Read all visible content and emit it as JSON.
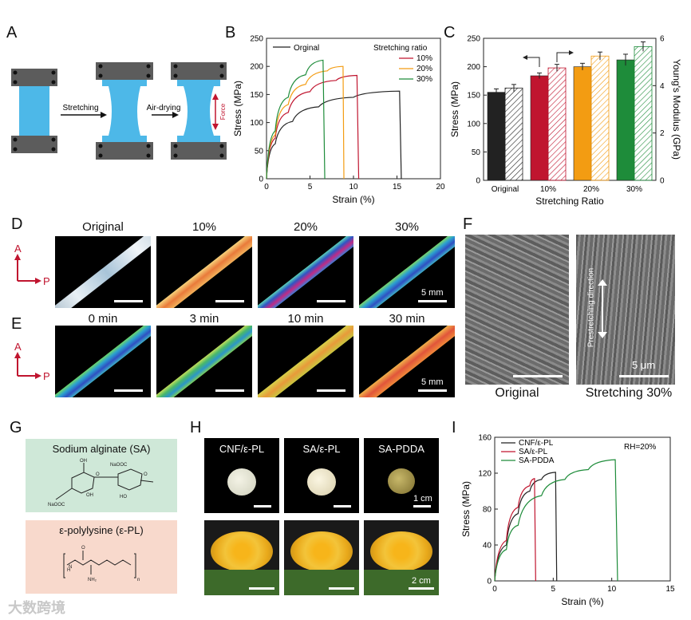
{
  "panels": {
    "A": "A",
    "B": "B",
    "C": "C",
    "D": "D",
    "E": "E",
    "F": "F",
    "G": "G",
    "H": "H",
    "I": "I"
  },
  "colors": {
    "original": "#222222",
    "r10": "#c0152f",
    "r20": "#f39c12",
    "r30": "#1e8c3a",
    "clamp": "#5c5c5c",
    "film": "#4db8e8",
    "force": "#c0152f",
    "sa_box": "#cfe8d8",
    "epl_box": "#f8d9cc"
  },
  "panel_a": {
    "stretching": "Stretching",
    "air_drying": "Air-drying",
    "force": "Force"
  },
  "chart_data": [
    {
      "id": "B",
      "type": "line",
      "title": "",
      "xlabel": "Strain (%)",
      "ylabel": "Stress (MPa)",
      "xlim": [
        0,
        20
      ],
      "ylim": [
        0,
        250
      ],
      "xticks": [
        "0",
        "5",
        "10",
        "15",
        "20"
      ],
      "yticks": [
        "0",
        "50",
        "100",
        "150",
        "200",
        "250"
      ],
      "legend_title": "Stretching ratio",
      "legend_original": "Orginal",
      "series": [
        {
          "name": "Orginal",
          "x": [
            0,
            1,
            3,
            6,
            10,
            15.3,
            15.5
          ],
          "y": [
            0,
            62,
            102,
            128,
            145,
            156,
            0
          ]
        },
        {
          "name": "10%",
          "x": [
            0,
            1,
            2.5,
            5,
            8,
            10.4,
            10.6
          ],
          "y": [
            0,
            72,
            118,
            155,
            175,
            184,
            0
          ]
        },
        {
          "name": "20%",
          "x": [
            0,
            1,
            2.5,
            4.5,
            7,
            8.8,
            8.9
          ],
          "y": [
            0,
            78,
            132,
            168,
            192,
            200,
            0
          ]
        },
        {
          "name": "30%",
          "x": [
            0,
            1,
            2.5,
            4.5,
            6.5,
            6.7
          ],
          "y": [
            0,
            85,
            145,
            185,
            211,
            0
          ]
        }
      ]
    },
    {
      "id": "C",
      "type": "bar",
      "xlabel": "Stretching Ratio",
      "ylabel": "Stress (MPa)",
      "y2label": "Young's Modulus (GPa)",
      "categories": [
        "Original",
        "10%",
        "20%",
        "30%"
      ],
      "ylim": [
        0,
        250
      ],
      "y2lim": [
        0,
        6
      ],
      "yticks": [
        "0",
        "50",
        "100",
        "150",
        "200",
        "250"
      ],
      "y2ticks": [
        "0",
        "2",
        "4",
        "6"
      ],
      "series": [
        {
          "name": "Stress",
          "values": [
            155,
            184,
            200,
            212
          ],
          "errors": [
            6,
            5,
            6,
            10
          ]
        },
        {
          "name": "Young's Modulus",
          "values": [
            3.9,
            4.75,
            5.25,
            5.65
          ],
          "errors": [
            0.15,
            0.15,
            0.17,
            0.2
          ]
        }
      ]
    },
    {
      "id": "I",
      "type": "line",
      "xlabel": "Strain (%)",
      "ylabel": "Stress (MPa)",
      "xlim": [
        0,
        15
      ],
      "ylim": [
        0,
        160
      ],
      "xticks": [
        "0",
        "5",
        "10",
        "15"
      ],
      "yticks": [
        "0",
        "40",
        "80",
        "120",
        "160"
      ],
      "annotation": "RH=20%",
      "series": [
        {
          "name": "CNF/ε-PL",
          "x": [
            0,
            1,
            2,
            3,
            4,
            5.2,
            5.3
          ],
          "y": [
            0,
            40,
            75,
            100,
            113,
            121,
            0
          ]
        },
        {
          "name": "SA/ε-PL",
          "x": [
            0,
            1,
            2,
            3,
            3.4,
            3.5
          ],
          "y": [
            0,
            45,
            82,
            106,
            114,
            0
          ]
        },
        {
          "name": "SA-PDDA",
          "x": [
            0,
            1,
            2,
            4,
            6,
            8,
            10.3,
            10.5
          ],
          "y": [
            0,
            35,
            62,
            95,
            113,
            124,
            135,
            0
          ]
        }
      ]
    }
  ],
  "panel_d": {
    "labels": [
      "Original",
      "10%",
      "20%",
      "30%"
    ],
    "axis_a": "A",
    "axis_p": "P",
    "scale": "5 mm"
  },
  "panel_e": {
    "labels": [
      "0 min",
      "3 min",
      "10 min",
      "30 min"
    ],
    "axis_a": "A",
    "axis_p": "P",
    "scale": "5 mm"
  },
  "panel_f": {
    "left": "Original",
    "right": "Stretching 30%",
    "direction": "Prestretching direction",
    "scale": "5 μm"
  },
  "panel_g": {
    "sa_title": "Sodium alginate (SA)",
    "epl_title": "ε-polylysine (ε-PL)"
  },
  "panel_h": {
    "labels": [
      "CNF/ε-PL",
      "SA/ε-PL",
      "SA-PDDA"
    ],
    "scale1": "1 cm",
    "scale2": "2 cm"
  },
  "watermark": "大数跨境"
}
